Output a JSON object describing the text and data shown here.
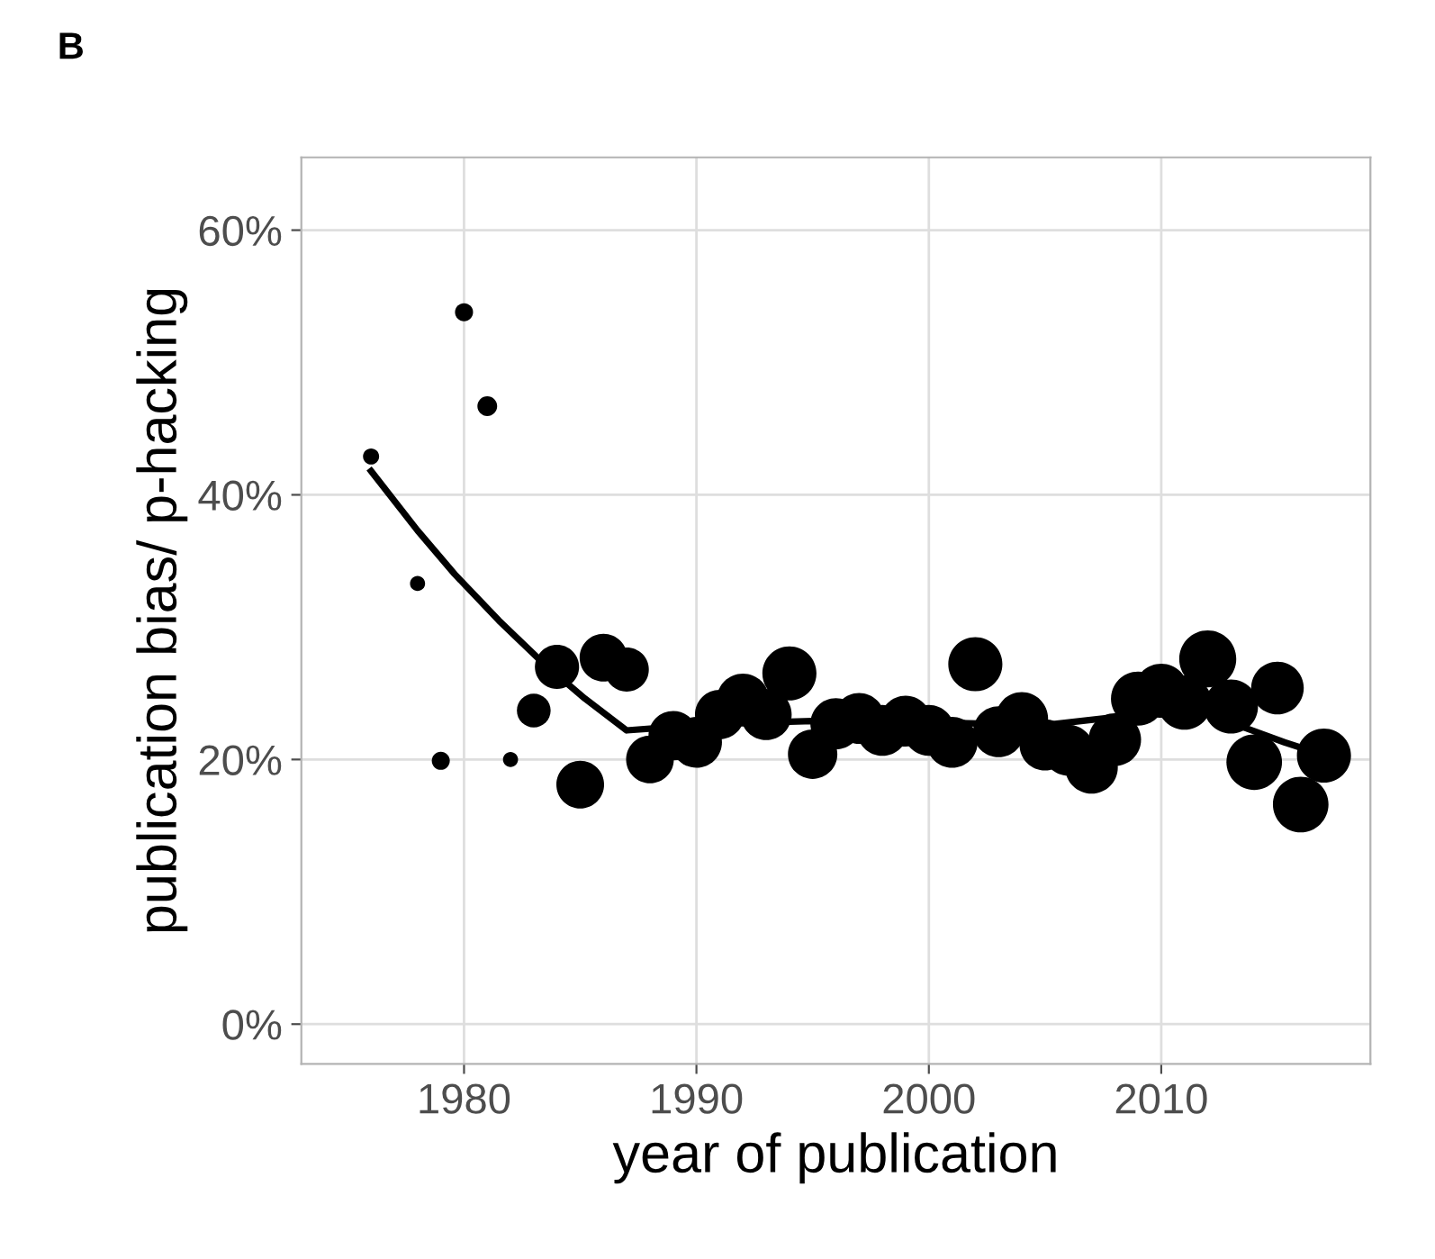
{
  "chart_data": {
    "type": "bubble",
    "xlabel": "year of publication",
    "ylabel": "publication bias/ p-hacking",
    "annotations": [
      "B"
    ],
    "xlim": [
      1973,
      2019
    ],
    "xticks": [
      1980,
      1990,
      2000,
      2010
    ],
    "ylim": [
      -3,
      65.5
    ],
    "yticks": [
      {
        "value": 0,
        "label": "0%"
      },
      {
        "value": 20,
        "label": "20%"
      },
      {
        "value": 40,
        "label": "40%"
      },
      {
        "value": 60,
        "label": "60%"
      }
    ],
    "grid": true,
    "legend": false,
    "series": [
      {
        "color": "#000000",
        "x": [
          1976,
          1978,
          1979,
          1980,
          1981,
          1982,
          1983,
          1984,
          1985,
          1986,
          1987,
          1988,
          1989,
          1990,
          1991,
          1992,
          1993,
          1994,
          1995,
          1996,
          1997,
          1998,
          1999,
          2000,
          2001,
          2002,
          2003,
          2004,
          2005,
          2006,
          2007,
          2008,
          2009,
          2010,
          2011,
          2012,
          2013,
          2014,
          2015,
          2016,
          2017
        ],
        "values": [
          42.9,
          33.3,
          19.9,
          53.8,
          46.7,
          20.0,
          23.7,
          27.0,
          18.1,
          27.7,
          26.8,
          20.0,
          21.8,
          21.3,
          23.4,
          24.5,
          23.4,
          26.5,
          20.4,
          22.7,
          23.1,
          22.2,
          22.9,
          22.2,
          21.3,
          27.2,
          22.1,
          23.1,
          21.1,
          20.7,
          19.4,
          21.5,
          24.6,
          25.2,
          24.3,
          27.6,
          24.0,
          19.8,
          25.4,
          16.6,
          20.3
        ],
        "sizes": [
          0.08,
          0.07,
          0.1,
          0.1,
          0.12,
          0.07,
          0.35,
          0.6,
          0.7,
          0.7,
          0.6,
          0.7,
          0.75,
          0.8,
          0.75,
          0.85,
          0.8,
          0.9,
          0.75,
          0.8,
          0.8,
          0.8,
          0.8,
          0.8,
          0.8,
          0.9,
          0.8,
          0.85,
          0.8,
          0.8,
          0.85,
          0.85,
          0.9,
          0.9,
          0.9,
          1.0,
          0.9,
          0.95,
          0.85,
          0.95,
          0.9
        ]
      },
      {
        "type": "line",
        "color": "#000000",
        "x": [
          1976,
          1978,
          1979.6,
          1981.5,
          1983.4,
          1985.2,
          1987,
          1988.5,
          1991,
          1995,
          2000,
          2005,
          2008,
          2010,
          2012,
          2013.6,
          2015.3,
          2016.0
        ],
        "values": [
          41.8,
          37.3,
          34.0,
          30.5,
          27.3,
          24.6,
          22.2,
          22.4,
          22.7,
          22.9,
          22.8,
          22.6,
          23.2,
          23.6,
          23.4,
          22.4,
          21.3,
          20.9
        ]
      }
    ]
  }
}
